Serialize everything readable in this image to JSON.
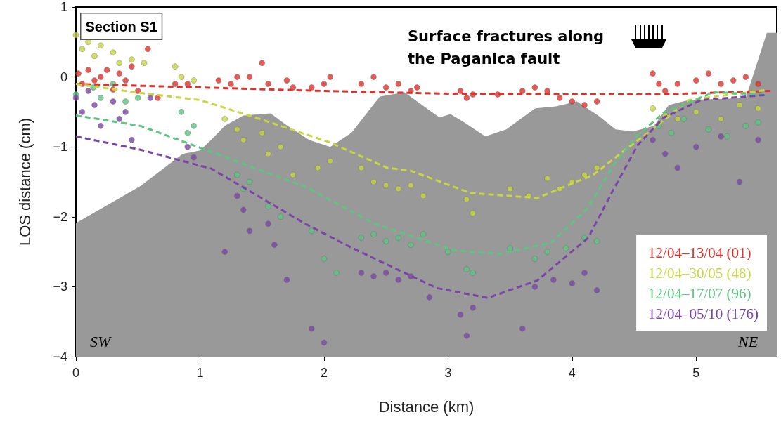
{
  "chart_data": {
    "type": "scatter",
    "xlabel": "Distance (km)",
    "ylabel": "LOS distance (cm)",
    "annotations": [
      "Section S1",
      "Surface fractures along the Paganica fault",
      "SW",
      "NE"
    ],
    "xlim": [
      0,
      5.65
    ],
    "xticks": [
      0,
      1,
      2,
      3,
      4,
      5
    ],
    "ylim": [
      -4,
      1
    ],
    "yticks": [
      {
        "value": -4,
        "label": "−4"
      },
      {
        "value": -3,
        "label": "−3"
      },
      {
        "value": -2,
        "label": "−2"
      },
      {
        "value": -1,
        "label": "−1"
      },
      0,
      1
    ],
    "legend": "bottom right",
    "marker": "circle",
    "grid": false,
    "series": [
      {
        "type": "area",
        "marker": "none",
        "color": "#999999",
        "x": [
          0,
          0,
          0.52,
          0.86,
          1.0,
          1.09,
          1.2,
          1.35,
          1.57,
          1.69,
          1.88,
          2.05,
          2.22,
          2.45,
          2.65,
          2.79,
          2.93,
          3.02,
          3.13,
          3.3,
          3.47,
          3.7,
          3.87,
          4.04,
          4.21,
          4.35,
          4.49,
          4.66,
          4.78,
          4.94,
          5.4,
          5.57,
          5.65,
          5.65
        ],
        "values": [
          -4,
          -2.09,
          -1.56,
          -1.1,
          -1.05,
          -0.9,
          -0.7,
          -0.55,
          -0.52,
          -0.68,
          -0.9,
          -1.0,
          -0.8,
          -0.28,
          -0.22,
          -0.4,
          -0.58,
          -0.53,
          -0.65,
          -0.85,
          -0.75,
          -0.45,
          -0.42,
          -0.35,
          -0.55,
          -0.75,
          -0.78,
          -0.7,
          -0.4,
          -0.33,
          -0.3,
          0.63,
          0.63,
          -4
        ]
      },
      {
        "name": "12/04–13/04 (01)",
        "color": "#e0302a",
        "x": [
          0.02,
          0.05,
          0.1,
          0.15,
          0.2,
          0.25,
          0.3,
          0.35,
          0.4,
          0.45,
          0.5,
          0.58,
          0.66,
          0.8,
          0.9,
          1.15,
          1.25,
          1.3,
          1.4,
          1.5,
          1.55,
          1.7,
          1.75,
          1.9,
          2.0,
          2.05,
          2.3,
          2.4,
          2.5,
          2.6,
          2.7,
          2.75,
          3.1,
          3.15,
          3.2,
          3.4,
          3.6,
          3.7,
          3.8,
          3.9,
          4.0,
          4.1,
          4.2,
          4.65,
          4.7,
          4.75,
          4.85,
          5.0,
          5.1,
          5.2,
          5.3,
          5.4,
          5.5
        ],
        "values": [
          0.05,
          -0.1,
          0.1,
          -0.05,
          0.0,
          0.1,
          -0.18,
          0.05,
          -0.05,
          0.15,
          -0.2,
          0.4,
          -0.3,
          -0.1,
          -0.1,
          -0.05,
          -0.1,
          0.0,
          0.0,
          0.2,
          -0.1,
          -0.05,
          -0.15,
          -0.15,
          -0.1,
          0.0,
          -0.1,
          0.0,
          -0.15,
          -0.1,
          -0.2,
          -0.15,
          -0.2,
          -0.3,
          -0.25,
          -0.25,
          -0.2,
          -0.15,
          -0.2,
          -0.3,
          -0.35,
          -0.4,
          -0.35,
          0.05,
          -0.1,
          -0.2,
          -0.1,
          -0.05,
          0.05,
          -0.1,
          -0.05,
          0.0,
          -0.1
        ]
      },
      {
        "name": "12/04–30/05 (48)",
        "color": "#c8d642",
        "x": [
          0.0,
          0.05,
          0.1,
          0.15,
          0.2,
          0.3,
          0.35,
          0.45,
          0.55,
          0.8,
          0.85,
          0.95,
          1.2,
          1.3,
          1.35,
          1.5,
          1.55,
          1.65,
          1.75,
          1.95,
          2.05,
          2.3,
          2.4,
          2.5,
          2.6,
          2.7,
          2.8,
          3.15,
          3.2,
          3.5,
          3.65,
          3.8,
          3.9,
          4.0,
          4.1,
          4.2,
          4.65,
          4.75,
          4.85,
          5.0,
          5.2,
          5.35,
          5.5
        ],
        "values": [
          0.6,
          0.4,
          0.5,
          0.3,
          0.45,
          0.35,
          0.2,
          0.25,
          0.2,
          0.15,
          0.0,
          -0.05,
          -0.6,
          -0.75,
          -0.9,
          -0.8,
          -1.1,
          -1.0,
          -1.4,
          -1.3,
          -1.2,
          -1.3,
          -1.5,
          -1.55,
          -1.6,
          -1.55,
          -1.7,
          -1.75,
          -1.95,
          -1.6,
          -1.7,
          -1.45,
          -1.6,
          -1.5,
          -1.4,
          -1.3,
          -0.45,
          -0.55,
          -0.6,
          -0.5,
          -0.6,
          -0.4,
          -0.45
        ]
      },
      {
        "name": "12/04–17/07 (96)",
        "color": "#5dc481",
        "x": [
          0.0,
          0.14,
          0.2,
          0.3,
          0.4,
          0.5,
          0.85,
          0.9,
          0.95,
          1.3,
          1.35,
          1.4,
          1.55,
          1.65,
          1.9,
          2.0,
          2.1,
          2.3,
          2.4,
          2.5,
          2.6,
          2.7,
          2.8,
          3.0,
          3.15,
          3.2,
          3.5,
          3.7,
          3.8,
          3.95,
          4.1,
          4.2,
          4.7,
          4.8,
          4.9,
          5.1,
          5.25,
          5.4,
          5.5
        ],
        "values": [
          -0.25,
          -0.15,
          -0.3,
          -0.1,
          -0.35,
          -0.3,
          -0.5,
          -0.8,
          -0.7,
          -1.4,
          -1.6,
          -1.5,
          -1.85,
          -2.0,
          -2.2,
          -2.6,
          -2.8,
          -2.3,
          -2.25,
          -2.35,
          -2.3,
          -2.4,
          -2.25,
          -2.5,
          -2.75,
          -2.8,
          -2.45,
          -2.6,
          -2.5,
          -2.45,
          -2.3,
          -2.35,
          -0.7,
          -0.8,
          -0.6,
          -0.75,
          -0.85,
          -0.7,
          -0.65
        ]
      },
      {
        "name": "12/04–05/10 (176)",
        "color": "#7b45a8",
        "x": [
          0.0,
          0.05,
          0.1,
          0.15,
          0.2,
          0.3,
          0.35,
          0.4,
          0.45,
          0.6,
          0.9,
          0.95,
          1.2,
          1.3,
          1.35,
          1.4,
          1.55,
          1.6,
          1.7,
          1.9,
          2.0,
          2.3,
          2.4,
          2.5,
          2.6,
          2.7,
          2.85,
          3.1,
          3.15,
          3.2,
          3.6,
          3.7,
          3.85,
          4.0,
          4.1,
          4.2,
          4.65,
          4.75,
          4.85,
          5.0,
          5.2,
          5.35,
          5.5
        ],
        "values": [
          -0.3,
          -0.5,
          -0.2,
          -0.4,
          -0.7,
          -0.35,
          -0.6,
          -0.5,
          -0.9,
          -0.3,
          -1.0,
          -1.15,
          -2.5,
          -1.7,
          -1.9,
          -2.2,
          -2.1,
          -2.4,
          -2.9,
          -3.6,
          -3.8,
          -2.8,
          -2.85,
          -2.8,
          -2.9,
          -2.85,
          -3.15,
          -3.4,
          -3.7,
          -3.3,
          -3.6,
          -3.0,
          -2.9,
          -2.95,
          -2.8,
          -3.05,
          -0.9,
          -1.1,
          -1.3,
          -1.0,
          -0.85,
          -1.5,
          -0.9
        ]
      },
      {
        "type": "line",
        "line_style": "dashed",
        "marker": "none",
        "color": "#e0302a",
        "x": [
          0,
          1,
          2,
          3,
          4,
          4.7,
          5.6
        ],
        "values": [
          -0.1,
          -0.15,
          -0.2,
          -0.24,
          -0.25,
          -0.25,
          -0.2
        ]
      },
      {
        "type": "line",
        "line_style": "dashed",
        "marker": "none",
        "color": "#c8d642",
        "x": [
          0,
          0.52,
          1.0,
          1.43,
          2.04,
          2.51,
          2.7,
          3.18,
          3.72,
          4.17,
          4.43,
          4.64,
          4.94,
          5.55
        ],
        "values": [
          -0.1,
          -0.23,
          -0.33,
          -0.57,
          -0.93,
          -1.3,
          -1.34,
          -1.66,
          -1.73,
          -1.4,
          -1.04,
          -0.76,
          -0.33,
          -0.19
        ]
      },
      {
        "type": "line",
        "line_style": "dashed",
        "marker": "none",
        "color": "#5dc481",
        "x": [
          0,
          0.52,
          1.09,
          1.85,
          2.41,
          2.51,
          3.05,
          3.42,
          3.83,
          4.13,
          4.33,
          4.53,
          4.74,
          5.14,
          5.55
        ],
        "values": [
          -0.55,
          -0.7,
          -1.07,
          -1.57,
          -2.1,
          -2.16,
          -2.48,
          -2.53,
          -2.37,
          -1.87,
          -1.27,
          -0.83,
          -0.51,
          -0.22,
          -0.25
        ]
      },
      {
        "type": "line",
        "line_style": "dashed",
        "marker": "none",
        "color": "#7b45a8",
        "x": [
          0,
          0.52,
          1.09,
          1.85,
          2.22,
          2.91,
          3.32,
          3.72,
          4.13,
          4.33,
          4.53,
          4.74,
          5.04,
          5.55
        ],
        "values": [
          -0.85,
          -1.04,
          -1.31,
          -2.1,
          -2.44,
          -3.02,
          -3.16,
          -2.91,
          -2.3,
          -1.62,
          -0.97,
          -0.58,
          -0.33,
          -0.26
        ]
      }
    ]
  }
}
